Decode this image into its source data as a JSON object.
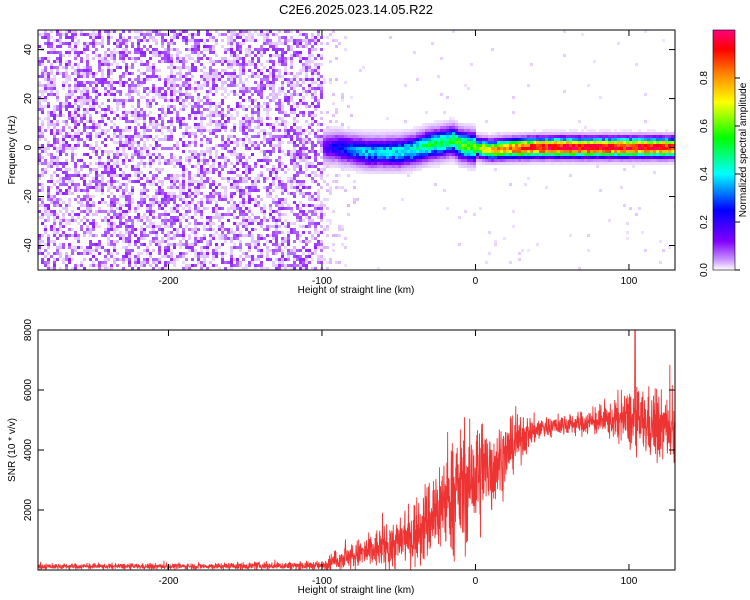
{
  "figure": {
    "title": "C2E6.2025.023.14.05.R22"
  },
  "chart_data": [
    {
      "type": "heatmap",
      "title": "C2E6.2025.023.14.05.R22",
      "xlabel": "Height of straight line (km)",
      "ylabel": "Frequency (Hz)",
      "xlim": [
        -285,
        130
      ],
      "ylim": [
        -50,
        48
      ],
      "x_ticks": [
        -200,
        -100,
        0,
        100
      ],
      "y_ticks": [
        -40,
        -20,
        0,
        20,
        40
      ],
      "colorbar": {
        "label": "Normalized spectral amplitude",
        "range": [
          0,
          1
        ],
        "ticks": [
          0.0,
          0.2,
          0.4,
          0.6,
          0.8
        ],
        "colormap": [
          "#ffffff",
          "#cc99ff",
          "#8000ff",
          "#0000ff",
          "#00ffff",
          "#00ff00",
          "#ffff00",
          "#ff8000",
          "#ff0000",
          "#ff0080"
        ]
      },
      "noise_region": {
        "x_range": [
          -285,
          -100
        ],
        "typical_amplitude": 0.15,
        "color": "#8000ff"
      },
      "signal_ridge": {
        "x": [
          -100,
          -90,
          -80,
          -70,
          -60,
          -50,
          -40,
          -30,
          -20,
          -15,
          -10,
          0,
          10,
          20,
          40,
          60,
          80,
          100,
          120,
          130
        ],
        "frequency": [
          0,
          0,
          -1,
          -2,
          -2,
          -2,
          -1,
          1,
          2,
          3,
          1,
          0,
          -1,
          -0.5,
          0,
          0,
          0,
          0,
          0,
          0
        ],
        "amplitude": [
          0.25,
          0.35,
          0.4,
          0.45,
          0.45,
          0.48,
          0.5,
          0.55,
          0.55,
          0.55,
          0.6,
          0.65,
          0.75,
          0.85,
          0.95,
          0.98,
          0.98,
          0.95,
          0.95,
          0.9
        ]
      },
      "grid": false
    },
    {
      "type": "line",
      "xlabel": "Height of straight line (km)",
      "ylabel": "SNR (10 * v/v)",
      "xlim": [
        -285,
        130
      ],
      "ylim": [
        0,
        8000
      ],
      "x_ticks": [
        -200,
        -100,
        0,
        100
      ],
      "y_ticks": [
        2000,
        4000,
        6000,
        8000
      ],
      "color": "#ee3333",
      "envelope": {
        "x": [
          -285,
          -200,
          -100,
          -90,
          -70,
          -50,
          -40,
          -30,
          -20,
          -10,
          0,
          10,
          20,
          30,
          40,
          50,
          60,
          70,
          80,
          90,
          100,
          110,
          120,
          130
        ],
        "mean": [
          120,
          120,
          150,
          350,
          600,
          900,
          1200,
          1700,
          2300,
          2700,
          3000,
          3400,
          3900,
          4400,
          4700,
          4800,
          4850,
          4900,
          4950,
          5000,
          5000,
          4900,
          4800,
          4700
        ],
        "spread": [
          80,
          80,
          120,
          300,
          500,
          800,
          1000,
          1300,
          1500,
          1700,
          1700,
          1500,
          900,
          600,
          400,
          300,
          300,
          350,
          400,
          600,
          900,
          1000,
          1000,
          900
        ]
      },
      "peak": {
        "x": 104,
        "y": 8000
      },
      "grid": false
    }
  ]
}
